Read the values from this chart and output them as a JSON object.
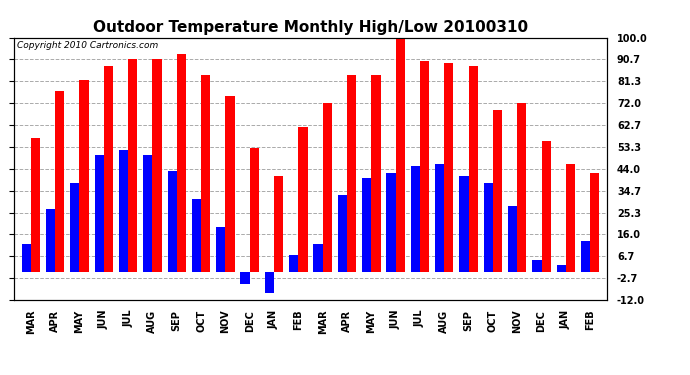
{
  "title": "Outdoor Temperature Monthly High/Low 20100310",
  "copyright": "Copyright 2010 Cartronics.com",
  "months": [
    "MAR",
    "APR",
    "MAY",
    "JUN",
    "JUL",
    "AUG",
    "SEP",
    "OCT",
    "NOV",
    "DEC",
    "JAN",
    "FEB",
    "MAR",
    "APR",
    "MAY",
    "JUN",
    "JUL",
    "AUG",
    "SEP",
    "OCT",
    "NOV",
    "DEC",
    "JAN",
    "FEB"
  ],
  "highs": [
    57.0,
    77.0,
    82.0,
    88.0,
    91.0,
    91.0,
    93.0,
    84.0,
    75.0,
    53.0,
    41.0,
    62.0,
    72.0,
    84.0,
    84.0,
    101.0,
    90.0,
    89.0,
    88.0,
    69.0,
    72.0,
    56.0,
    46.0,
    42.0
  ],
  "lows": [
    12.0,
    27.0,
    38.0,
    50.0,
    52.0,
    50.0,
    43.0,
    31.0,
    19.0,
    -5.0,
    -9.0,
    7.0,
    12.0,
    33.0,
    40.0,
    42.0,
    45.0,
    46.0,
    41.0,
    38.0,
    28.0,
    5.0,
    3.0,
    13.0
  ],
  "bar_width": 0.38,
  "high_color": "#ff0000",
  "low_color": "#0000ff",
  "bg_color": "#ffffff",
  "grid_color": "#aaaaaa",
  "ylim": [
    -12.0,
    100.0
  ],
  "yticks": [
    -12.0,
    -2.7,
    6.7,
    16.0,
    25.3,
    34.7,
    44.0,
    53.3,
    62.7,
    72.0,
    81.3,
    90.7,
    100.0
  ],
  "title_fontsize": 11,
  "label_fontsize": 7,
  "tick_fontsize": 7,
  "copyright_fontsize": 6.5
}
